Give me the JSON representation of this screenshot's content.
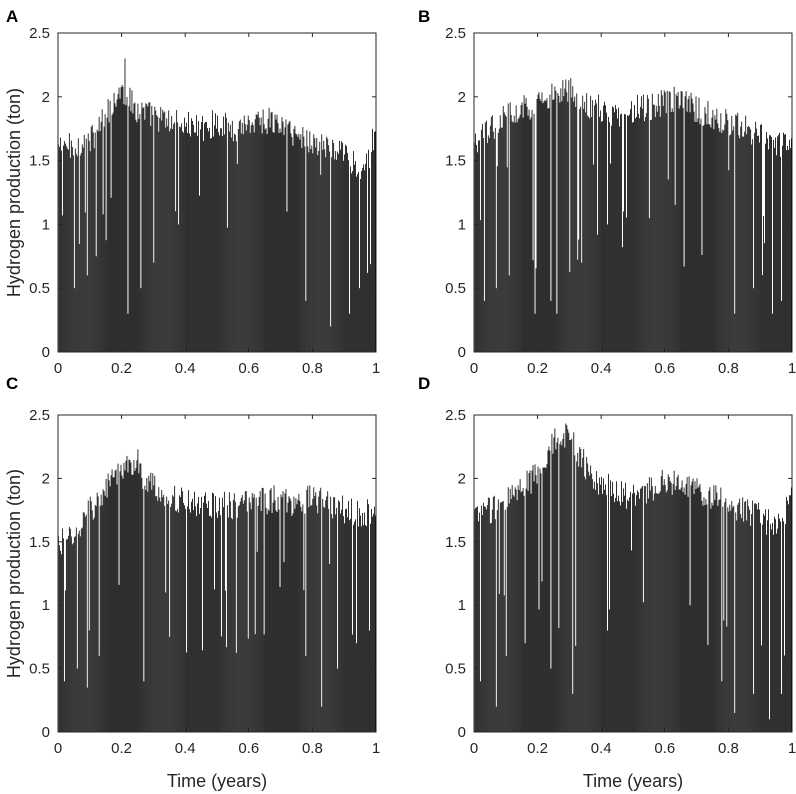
{
  "figure": {
    "xlabel": "Time (years)",
    "ylabel": "Hydrogen production (ton)"
  },
  "chart_data": [
    {
      "panel": "A",
      "type": "bar",
      "xlabel": "",
      "ylabel": "Hydrogen production (ton)",
      "xlim": [
        0,
        1
      ],
      "ylim": [
        0,
        2.5
      ],
      "xticks": [
        "0",
        "0.2",
        "0.4",
        "0.6",
        "0.8",
        "1"
      ],
      "yticks": [
        "0",
        "0.5",
        "1",
        "1.5",
        "2",
        "2.5"
      ],
      "bar_color": "#000000",
      "x": [
        0,
        0.05,
        0.1,
        0.15,
        0.2,
        0.25,
        0.3,
        0.35,
        0.4,
        0.45,
        0.5,
        0.55,
        0.6,
        0.65,
        0.7,
        0.75,
        0.8,
        0.85,
        0.9,
        0.95,
        1
      ],
      "values": [
        1.6,
        1.62,
        1.65,
        1.85,
        2.05,
        1.9,
        1.85,
        1.8,
        1.78,
        1.75,
        1.8,
        1.75,
        1.8,
        1.82,
        1.78,
        1.7,
        1.65,
        1.6,
        1.55,
        1.45,
        1.7
      ],
      "peak": {
        "x": 0.21,
        "y": 2.3
      },
      "dips": [
        {
          "x": 0.05,
          "y": 0.5
        },
        {
          "x": 0.09,
          "y": 0.6
        },
        {
          "x": 0.12,
          "y": 0.75
        },
        {
          "x": 0.22,
          "y": 0.3
        },
        {
          "x": 0.26,
          "y": 0.5
        },
        {
          "x": 0.3,
          "y": 0.7
        },
        {
          "x": 0.38,
          "y": 1.0
        },
        {
          "x": 0.72,
          "y": 1.1
        },
        {
          "x": 0.78,
          "y": 0.4
        },
        {
          "x": 0.86,
          "y": 0.2
        },
        {
          "x": 0.92,
          "y": 0.3
        },
        {
          "x": 0.95,
          "y": 0.5
        }
      ]
    },
    {
      "panel": "B",
      "type": "bar",
      "xlabel": "",
      "ylabel": "",
      "xlim": [
        0,
        1
      ],
      "ylim": [
        0,
        2.5
      ],
      "xticks": [
        "0",
        "0.2",
        "0.4",
        "0.6",
        "0.8",
        "1"
      ],
      "yticks": [
        "0",
        "0.5",
        "1",
        "1.5",
        "2",
        "2.5"
      ],
      "bar_color": "#000000",
      "x": [
        0,
        0.05,
        0.1,
        0.15,
        0.2,
        0.25,
        0.3,
        0.35,
        0.4,
        0.45,
        0.5,
        0.55,
        0.6,
        0.65,
        0.7,
        0.75,
        0.8,
        0.85,
        0.9,
        0.95,
        1
      ],
      "values": [
        1.6,
        1.75,
        1.85,
        1.9,
        1.95,
        2.0,
        2.05,
        1.95,
        1.9,
        1.85,
        1.9,
        1.92,
        1.95,
        2.0,
        1.9,
        1.85,
        1.8,
        1.75,
        1.7,
        1.65,
        1.6
      ],
      "peak": {
        "x": 0.28,
        "y": 2.13
      },
      "dips": [
        {
          "x": 0.03,
          "y": 0.4
        },
        {
          "x": 0.07,
          "y": 0.5
        },
        {
          "x": 0.11,
          "y": 0.6
        },
        {
          "x": 0.19,
          "y": 0.3
        },
        {
          "x": 0.24,
          "y": 0.4
        },
        {
          "x": 0.26,
          "y": 0.3
        },
        {
          "x": 0.34,
          "y": 0.7
        },
        {
          "x": 0.42,
          "y": 1.0
        },
        {
          "x": 0.82,
          "y": 0.3
        },
        {
          "x": 0.88,
          "y": 0.5
        },
        {
          "x": 0.94,
          "y": 0.3
        },
        {
          "x": 0.97,
          "y": 0.4
        }
      ]
    },
    {
      "panel": "C",
      "type": "bar",
      "xlabel": "Time (years)",
      "ylabel": "Hydrogen production (ton)",
      "xlim": [
        0,
        1
      ],
      "ylim": [
        0,
        2.5
      ],
      "xticks": [
        "0",
        "0.2",
        "0.4",
        "0.6",
        "0.8",
        "1"
      ],
      "yticks": [
        "0",
        "0.5",
        "1",
        "1.5",
        "2",
        "2.5"
      ],
      "bar_color": "#000000",
      "x": [
        0,
        0.05,
        0.1,
        0.15,
        0.2,
        0.25,
        0.3,
        0.35,
        0.4,
        0.45,
        0.5,
        0.55,
        0.6,
        0.65,
        0.7,
        0.75,
        0.8,
        0.85,
        0.9,
        0.95,
        1
      ],
      "values": [
        1.5,
        1.55,
        1.75,
        1.9,
        2.1,
        2.05,
        1.95,
        1.85,
        1.82,
        1.8,
        1.8,
        1.78,
        1.8,
        1.82,
        1.85,
        1.8,
        1.85,
        1.8,
        1.75,
        1.72,
        1.75
      ],
      "peak": {
        "x": 0.25,
        "y": 2.23
      },
      "dips": [
        {
          "x": 0.02,
          "y": 0.4
        },
        {
          "x": 0.06,
          "y": 0.5
        },
        {
          "x": 0.09,
          "y": 0.35
        },
        {
          "x": 0.13,
          "y": 0.6
        },
        {
          "x": 0.27,
          "y": 0.4
        },
        {
          "x": 0.34,
          "y": 1.1
        },
        {
          "x": 0.78,
          "y": 0.6
        },
        {
          "x": 0.83,
          "y": 0.2
        },
        {
          "x": 0.88,
          "y": 0.5
        },
        {
          "x": 0.94,
          "y": 0.7
        },
        {
          "x": 0.98,
          "y": 0.8
        }
      ]
    },
    {
      "panel": "D",
      "type": "bar",
      "xlabel": "Time (years)",
      "ylabel": "",
      "xlim": [
        0,
        1
      ],
      "ylim": [
        0,
        2.5
      ],
      "xticks": [
        "0",
        "0.2",
        "0.4",
        "0.6",
        "0.8",
        "1"
      ],
      "yticks": [
        "0",
        "0.5",
        "1",
        "1.5",
        "2",
        "2.5"
      ],
      "bar_color": "#000000",
      "x": [
        0,
        0.05,
        0.1,
        0.15,
        0.2,
        0.25,
        0.3,
        0.35,
        0.4,
        0.45,
        0.5,
        0.55,
        0.6,
        0.65,
        0.7,
        0.75,
        0.8,
        0.85,
        0.9,
        0.95,
        1
      ],
      "values": [
        1.7,
        1.75,
        1.85,
        1.9,
        2.05,
        2.3,
        2.35,
        2.1,
        1.95,
        1.9,
        1.85,
        1.9,
        2.0,
        1.95,
        1.9,
        1.85,
        1.8,
        1.75,
        1.7,
        1.6,
        1.85
      ],
      "peak": {
        "x": 0.29,
        "y": 2.42
      },
      "dips": [
        {
          "x": 0.02,
          "y": 0.4
        },
        {
          "x": 0.07,
          "y": 0.2
        },
        {
          "x": 0.1,
          "y": 0.6
        },
        {
          "x": 0.16,
          "y": 0.7
        },
        {
          "x": 0.24,
          "y": 0.5
        },
        {
          "x": 0.31,
          "y": 0.3
        },
        {
          "x": 0.42,
          "y": 0.8
        },
        {
          "x": 0.68,
          "y": 1.0
        },
        {
          "x": 0.78,
          "y": 0.4
        },
        {
          "x": 0.82,
          "y": 0.15
        },
        {
          "x": 0.88,
          "y": 0.3
        },
        {
          "x": 0.93,
          "y": 0.1
        },
        {
          "x": 0.97,
          "y": 0.3
        }
      ]
    }
  ]
}
